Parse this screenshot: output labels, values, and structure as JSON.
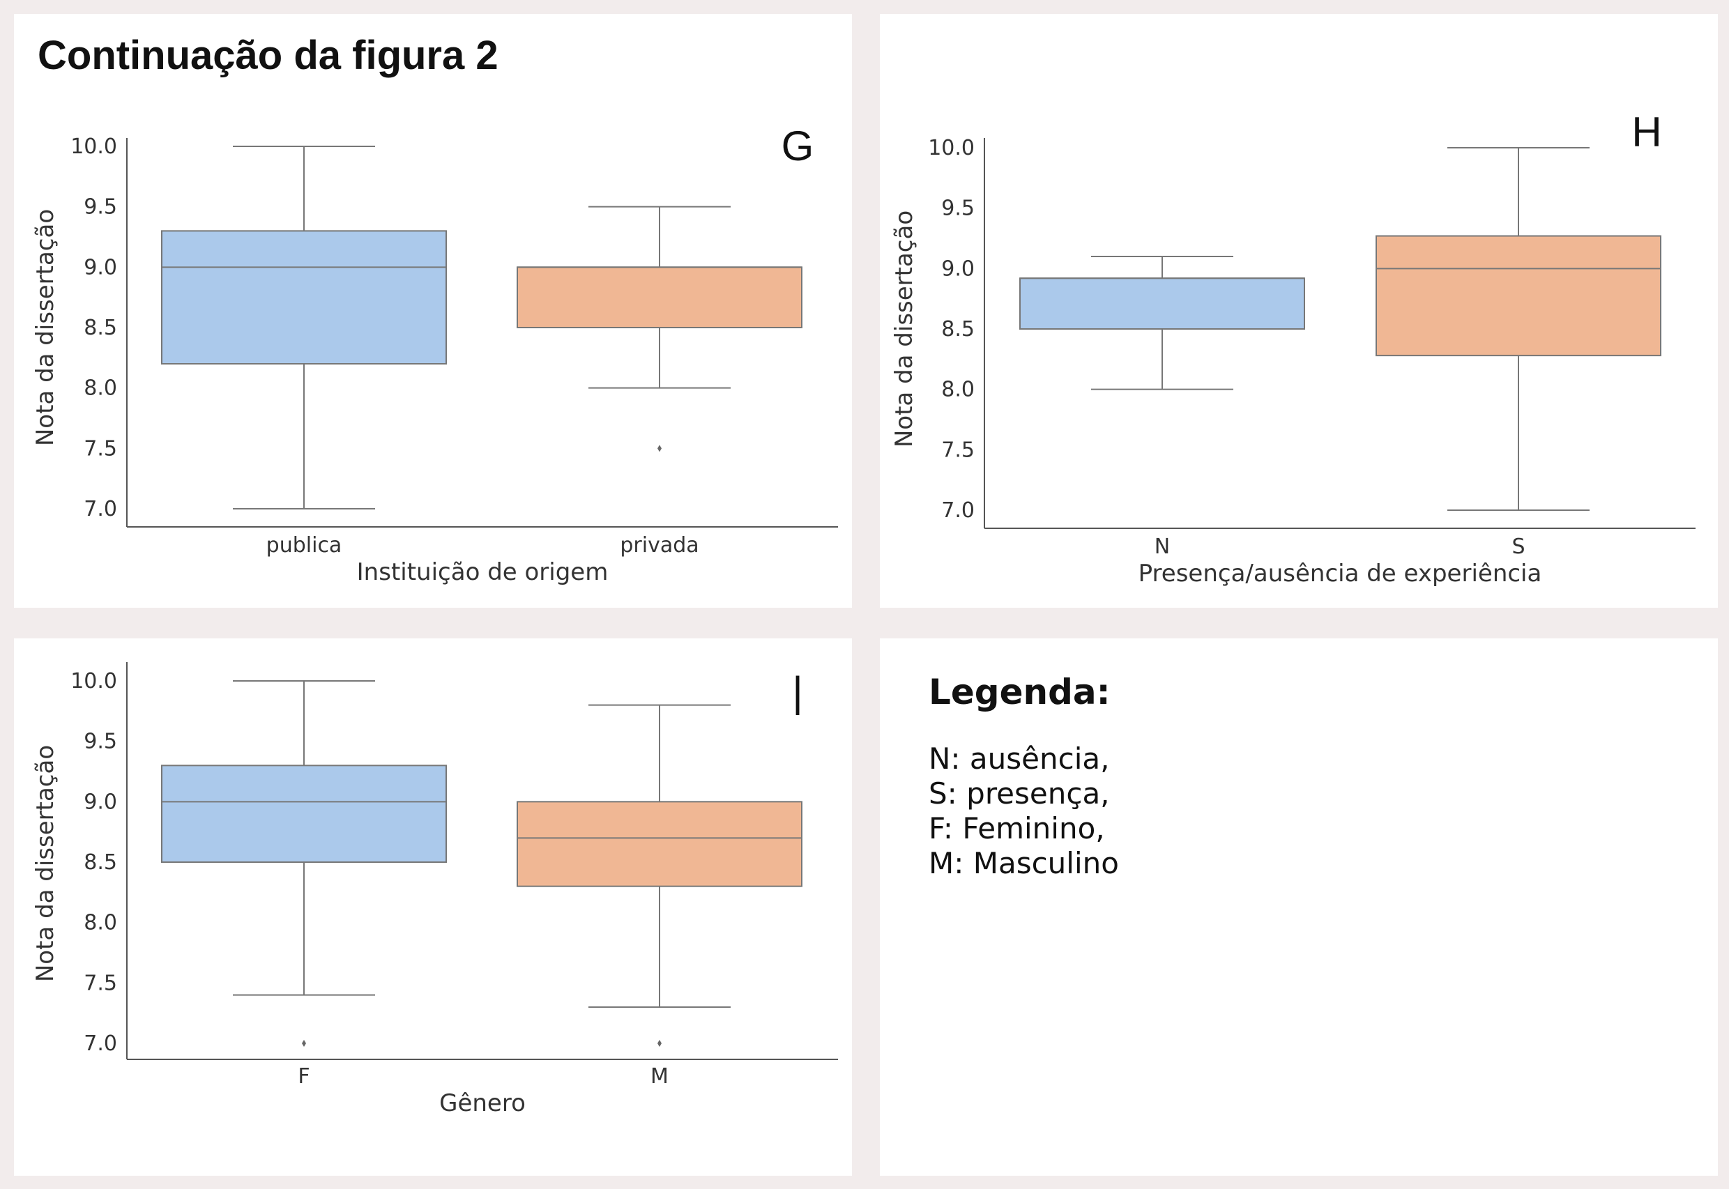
{
  "figure_title": "Continuação da figura 2",
  "colors": {
    "blue": "#abc9eb",
    "orange": "#f0b794",
    "stroke": "#777777",
    "axis": "#555555",
    "text": "#333333"
  },
  "chart_data": [
    {
      "id": "g",
      "type": "box",
      "panel_label": "G",
      "xlabel": "Instituição de origem",
      "ylabel": "Nota da dissertação",
      "ylim": [
        6.85,
        10.15
      ],
      "yticks": [
        "7.0",
        "7.5",
        "8.0",
        "8.5",
        "9.0",
        "9.5",
        "10.0"
      ],
      "categories": [
        "publica",
        "privada"
      ],
      "boxes": [
        {
          "category": "publica",
          "color": "blue",
          "whislo": 7.0,
          "q1": 8.2,
          "median": 9.0,
          "q3": 9.3,
          "whishi": 10.0,
          "fliers": []
        },
        {
          "category": "privada",
          "color": "orange",
          "whislo": 8.0,
          "q1": 8.5,
          "median": 9.0,
          "q3": 9.0,
          "whishi": 9.5,
          "fliers": [
            7.5
          ]
        }
      ]
    },
    {
      "id": "h",
      "type": "box",
      "panel_label": "H",
      "xlabel": "Presença/ausência de experiência",
      "ylabel": "Nota da dissertação",
      "ylim": [
        6.85,
        10.15
      ],
      "yticks": [
        "7.0",
        "7.5",
        "8.0",
        "8.5",
        "9.0",
        "9.5",
        "10.0"
      ],
      "categories": [
        "N",
        "S"
      ],
      "boxes": [
        {
          "category": "N",
          "color": "blue",
          "whislo": 8.0,
          "q1": 8.5,
          "median": 8.92,
          "q3": 8.92,
          "whishi": 9.1,
          "fliers": []
        },
        {
          "category": "S",
          "color": "orange",
          "whislo": 7.0,
          "q1": 8.28,
          "median": 9.0,
          "q3": 9.27,
          "whishi": 10.0,
          "fliers": []
        }
      ]
    },
    {
      "id": "i",
      "type": "box",
      "panel_label": "I",
      "xlabel": "Gênero",
      "ylabel": "Nota da dissertação",
      "ylim": [
        6.85,
        10.15
      ],
      "yticks": [
        "7.0",
        "7.5",
        "8.0",
        "8.5",
        "9.0",
        "9.5",
        "10.0"
      ],
      "categories": [
        "F",
        "M"
      ],
      "boxes": [
        {
          "category": "F",
          "color": "blue",
          "whislo": 7.4,
          "q1": 8.5,
          "median": 9.0,
          "q3": 9.3,
          "whishi": 10.0,
          "fliers": [
            7.0
          ]
        },
        {
          "category": "M",
          "color": "orange",
          "whislo": 7.3,
          "q1": 8.3,
          "median": 8.7,
          "q3": 9.0,
          "whishi": 9.8,
          "fliers": [
            7.0
          ]
        }
      ]
    }
  ],
  "legend": {
    "title": "Legenda:",
    "items": [
      "N: ausência,",
      "S: presença,",
      "F: Feminino,",
      "M: Masculino"
    ]
  }
}
